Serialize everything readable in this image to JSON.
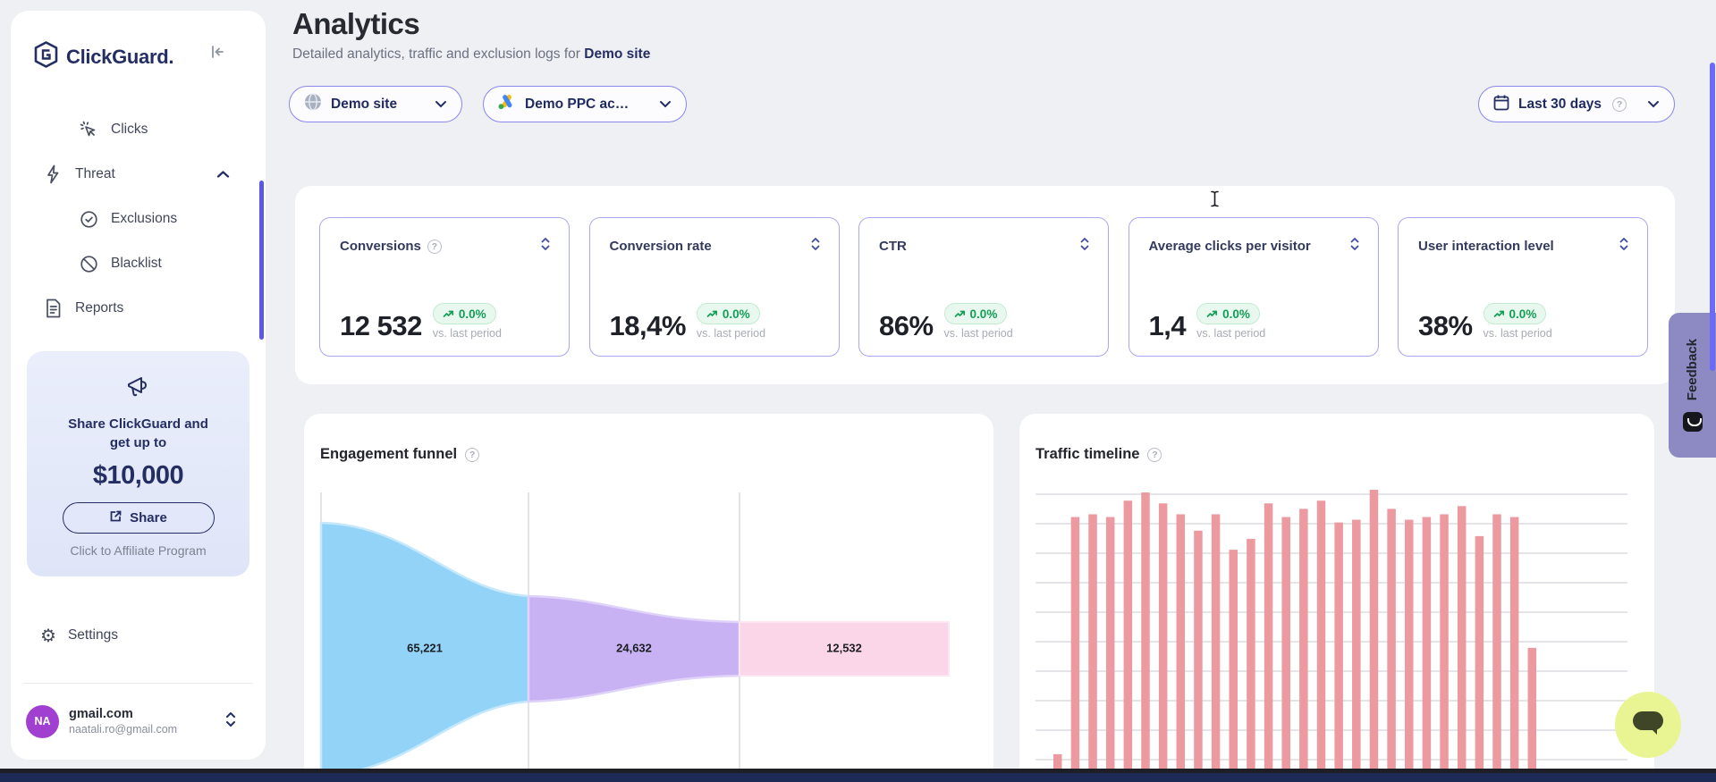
{
  "brand": {
    "name": "ClickGuard."
  },
  "sidebar": {
    "nav": [
      {
        "label": "Clicks",
        "icon": "cursor-click-icon",
        "indent": true,
        "chevron": ""
      },
      {
        "label": "Threat",
        "icon": "threat-icon",
        "indent": false,
        "chevron": "up"
      },
      {
        "label": "Exclusions",
        "icon": "badge-check-icon",
        "indent": true,
        "chevron": ""
      },
      {
        "label": "Blacklist",
        "icon": "blacklist-icon",
        "indent": true,
        "chevron": ""
      },
      {
        "label": "Reports",
        "icon": "reports-icon",
        "indent": false,
        "chevron": ""
      }
    ],
    "promo": {
      "line1": "Share ClickGuard and",
      "line2": "get up to",
      "amount": "$10,000",
      "share_label": "Share",
      "caption": "Click to Affiliate Program"
    },
    "settings_label": "Settings",
    "user": {
      "initials": "NA",
      "name": "gmail.com",
      "email": "naatali.ro@gmail.com"
    }
  },
  "header": {
    "title": "Analytics",
    "subtitle": "Detailed analytics, traffic and exclusion logs for ",
    "subtitle_target": "Demo site"
  },
  "filters": {
    "site": "Demo site",
    "account": "Demo PPC ac…",
    "period": "Last 30 days"
  },
  "kpis": [
    {
      "label": "Conversions",
      "value": "12 532",
      "delta": "0.0%",
      "caption": "vs. last period",
      "help": true
    },
    {
      "label": "Conversion rate",
      "value": "18,4%",
      "delta": "0.0%",
      "caption": "vs. last period",
      "help": false
    },
    {
      "label": "CTR",
      "value": "86%",
      "delta": "0.0%",
      "caption": "vs. last period",
      "help": false
    },
    {
      "label": "Average clicks per visitor",
      "value": "1,4",
      "delta": "0.0%",
      "caption": "vs. last period",
      "help": false
    },
    {
      "label": "User interaction level",
      "value": "38%",
      "delta": "0.0%",
      "caption": "vs. last period",
      "help": false
    }
  ],
  "panels": {
    "funnel_title": "Engagement funnel",
    "traffic_title": "Traffic timeline"
  },
  "feedback_label": "Feedback",
  "colors": {
    "accent_indigo": "#6d6af8",
    "pill_border": "#8986ee",
    "kpi_border": "#aaa7f2",
    "delta_green": "#149d57",
    "funnel_blue": "#93d3f8",
    "funnel_purple": "#c9b2f4",
    "funnel_pink": "#fbd6e9",
    "traffic_bar": "#ec9aa0",
    "navy": "#242e63",
    "chat_green": "#e9f593"
  },
  "chart_data": [
    {
      "type": "funnel",
      "title": "Engagement funnel",
      "stages": [
        {
          "label": "65,221",
          "value": 65221,
          "color": "#93d3f8"
        },
        {
          "label": "24,632",
          "value": 24632,
          "color": "#c9b2f4"
        },
        {
          "label": "12,532",
          "value": 12532,
          "color": "#fbd6e9"
        }
      ],
      "note": "three-stage sankey-style funnel, vertical gridlines between stages"
    },
    {
      "type": "bar",
      "title": "Traffic timeline",
      "xlabel": "",
      "ylabel": "",
      "note": "daily traffic bars over last 30 days; axis labels below fold; values estimated as % of tallest bar",
      "bar_color": "#ec9aa0",
      "grid": true,
      "values": [
        3,
        90,
        91,
        90,
        96,
        99,
        95,
        91,
        85,
        91,
        78,
        82,
        95,
        90,
        93,
        96,
        88,
        89,
        100,
        93,
        89,
        90,
        91,
        94,
        83,
        91,
        90,
        42
      ]
    }
  ]
}
